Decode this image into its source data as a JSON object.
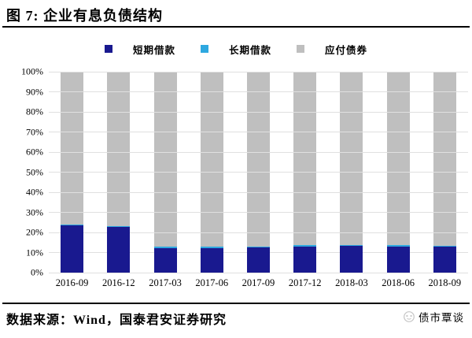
{
  "title": "图 7: 企业有息负债结构",
  "source_note": "数据来源：Wind，国泰君安证券研究",
  "watermark": {
    "text": "债市覃谈",
    "color": "#c6c6c6"
  },
  "colors": {
    "short_term": "#19198f",
    "long_term": "#2ea8e0",
    "bonds": "#bfbfbf",
    "gridline": "#e0e0e0",
    "rule": "#000000"
  },
  "legend": {
    "items": [
      {
        "label": "短期借款"
      },
      {
        "label": "长期借款"
      },
      {
        "label": "应付债券"
      }
    ]
  },
  "chart_data": {
    "type": "bar",
    "stacked": true,
    "normalized_to_100_percent": true,
    "title": "企业有息负债结构",
    "xlabel": "",
    "ylabel": "",
    "ylim": [
      0,
      100
    ],
    "grid": true,
    "legend_position": "top",
    "categories": [
      "2016-09",
      "2016-12",
      "2017-03",
      "2017-06",
      "2017-09",
      "2017-12",
      "2018-03",
      "2018-06",
      "2018-09"
    ],
    "yticks": [
      "0%",
      "10%",
      "20%",
      "30%",
      "40%",
      "50%",
      "60%",
      "70%",
      "80%",
      "90%",
      "100%"
    ],
    "series": [
      {
        "name": "短期借款",
        "color": "#19198f",
        "values": [
          23.5,
          22.7,
          12.2,
          12.3,
          12.5,
          13.0,
          13.2,
          13.1,
          12.9
        ]
      },
      {
        "name": "长期借款",
        "color": "#2ea8e0",
        "values": [
          0.6,
          0.6,
          0.6,
          0.6,
          0.6,
          0.6,
          0.6,
          0.6,
          0.6
        ]
      },
      {
        "name": "应付债券",
        "color": "#bfbfbf",
        "values": [
          75.9,
          76.7,
          87.2,
          87.1,
          86.9,
          86.4,
          86.2,
          86.3,
          86.5
        ]
      }
    ]
  }
}
